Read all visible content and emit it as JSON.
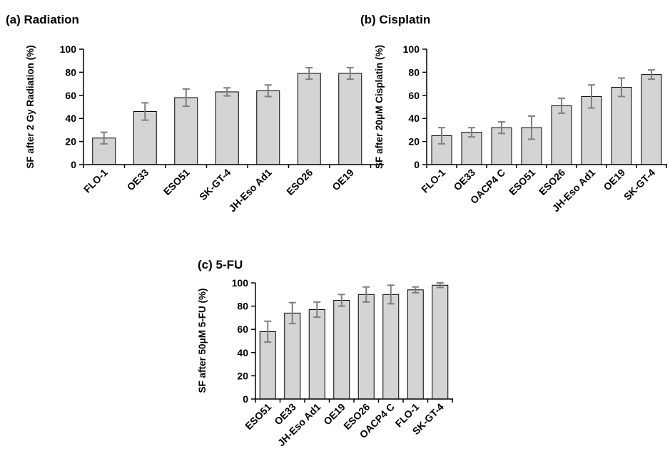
{
  "chart_data": [
    {
      "type": "bar",
      "panel_label": "(a)  Radiation",
      "title": "Radiation",
      "ylabel": "SF after 2 Gy Radiation  (%)",
      "xlabel": "",
      "ylim": [
        0,
        100
      ],
      "yticks": [
        0,
        20,
        40,
        60,
        80,
        100
      ],
      "categories": [
        "FLO-1",
        "OE33",
        "ESO51",
        "SK-GT-4",
        "JH-Eso Ad1",
        "ESO26",
        "OE19"
      ],
      "values": [
        23,
        46,
        58,
        63,
        64,
        79,
        79
      ],
      "errors": [
        5,
        7.5,
        7.5,
        3.5,
        5,
        5,
        5
      ],
      "bar_color": "#d4d4d4",
      "error_color": "#7f7f7f"
    },
    {
      "type": "bar",
      "panel_label": "(b)  Cisplatin",
      "title": "Cisplatin",
      "ylabel": "SF after 20μM Cisplatin  (%)",
      "xlabel": "",
      "ylim": [
        0,
        100
      ],
      "yticks": [
        0,
        20,
        40,
        60,
        80,
        100
      ],
      "categories": [
        "FLO-1",
        "OE33",
        "OACP4 C",
        "ESO51",
        "ESO26",
        "JH-Eso Ad1",
        "OE19",
        "SK-GT-4"
      ],
      "values": [
        25,
        28,
        32,
        32,
        51,
        59,
        67,
        78
      ],
      "errors": [
        7,
        4,
        5,
        10,
        6.5,
        10,
        8,
        4
      ],
      "bar_color": "#d4d4d4",
      "error_color": "#7f7f7f"
    },
    {
      "type": "bar",
      "panel_label": "(c)  5-FU",
      "title": "5-FU",
      "ylabel": "SF after 50μM 5-FU (%)",
      "xlabel": "",
      "ylim": [
        0,
        100
      ],
      "yticks": [
        0,
        20,
        40,
        60,
        80,
        100
      ],
      "categories": [
        "ESO51",
        "OE33",
        "JH-Eso Ad1",
        "OE19",
        "ESO26",
        "OACP4 C",
        "FLO-1",
        "SK-GT-4"
      ],
      "values": [
        58,
        74,
        77,
        85,
        90,
        90,
        94,
        98
      ],
      "errors": [
        9,
        9,
        6.5,
        5,
        6.5,
        8,
        2.5,
        2
      ],
      "bar_color": "#d4d4d4",
      "error_color": "#7f7f7f"
    }
  ]
}
